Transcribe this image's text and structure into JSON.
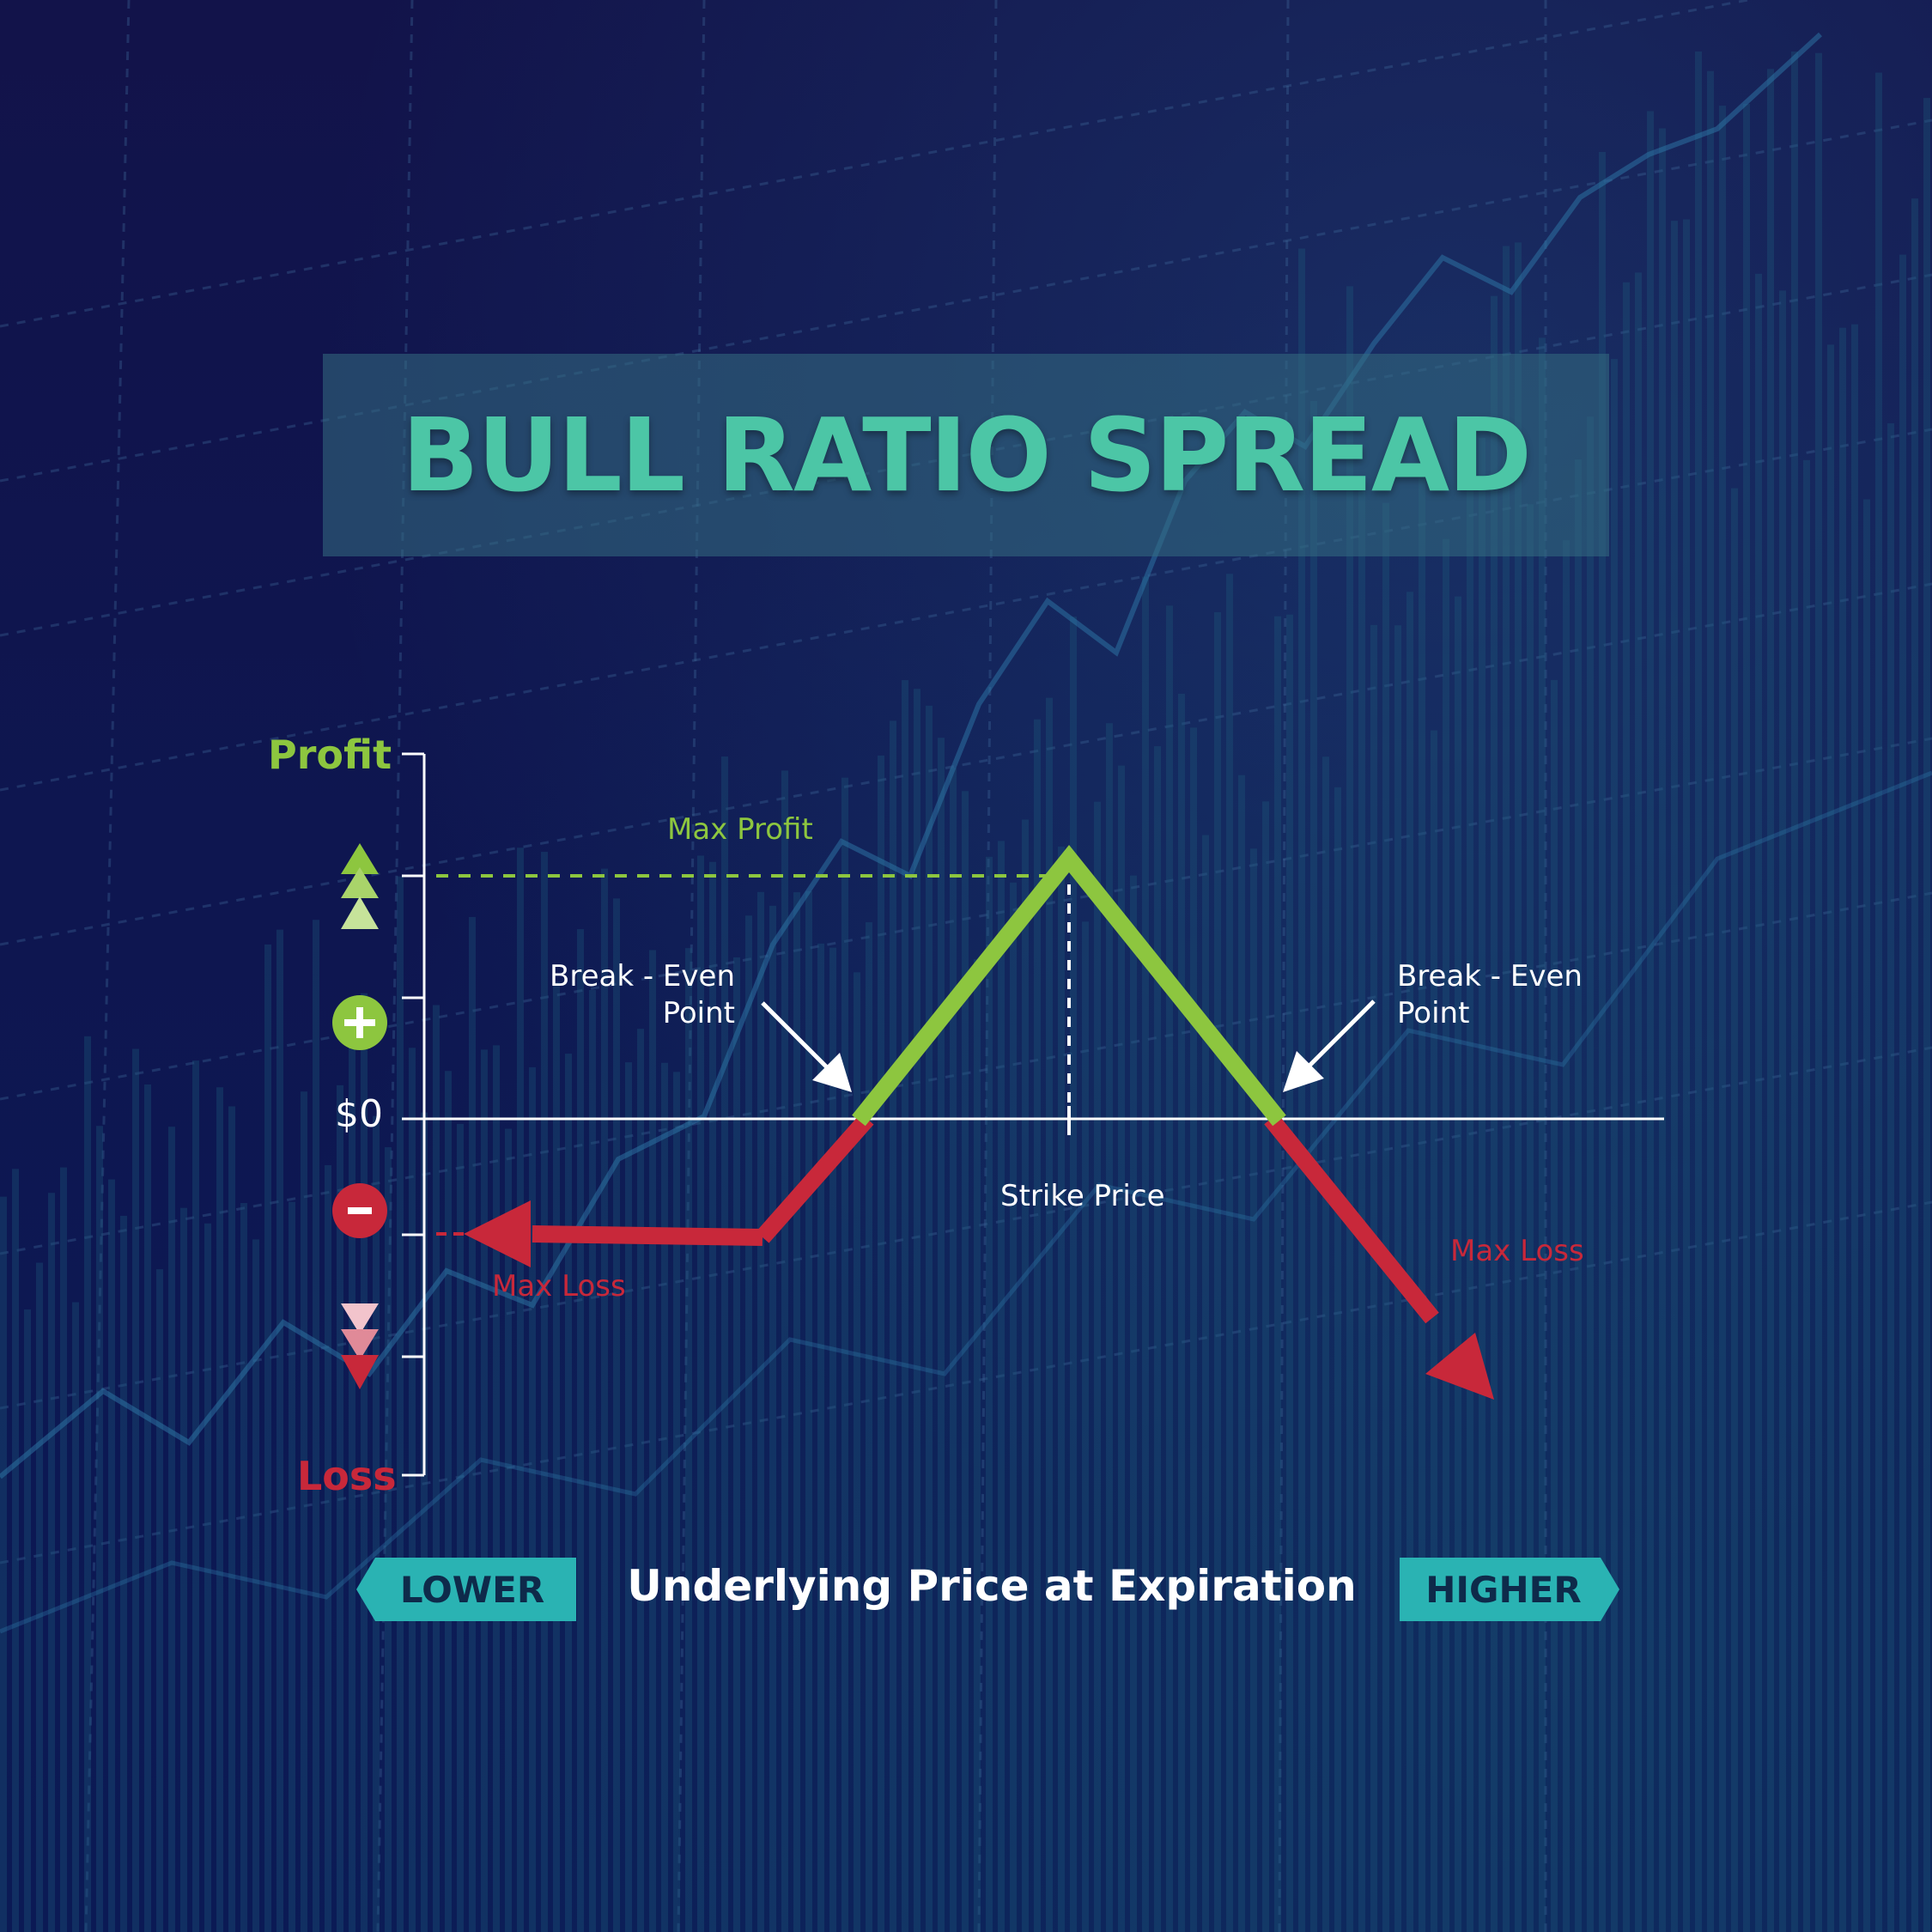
{
  "title": "BULL RATIO SPREAD",
  "y_axis": {
    "top_label": "Profit",
    "bottom_label": "Loss",
    "zero_label": "$0"
  },
  "annotations": {
    "max_profit": "Max Profit",
    "break_even_left": [
      "Break - Even",
      "Point"
    ],
    "break_even_right": [
      "Break - Even",
      "Point"
    ],
    "strike_price": "Strike Price",
    "max_loss_left": "Max Loss",
    "max_loss_right": "Max Loss"
  },
  "x_axis": {
    "title": "Underlying Price at Expiration",
    "lower_tag": "LOWER",
    "higher_tag": "HIGHER"
  },
  "colors": {
    "profit": "#8dc63f",
    "loss": "#c8283a",
    "title": "#4cc6a6",
    "tag": "#2ab3b3",
    "axis": "#ffffff"
  },
  "icons": {
    "plus": "plus-circle-icon",
    "minus": "minus-circle-icon",
    "up": "triple-up-triangles-icon",
    "down": "triple-down-triangles-icon"
  }
}
